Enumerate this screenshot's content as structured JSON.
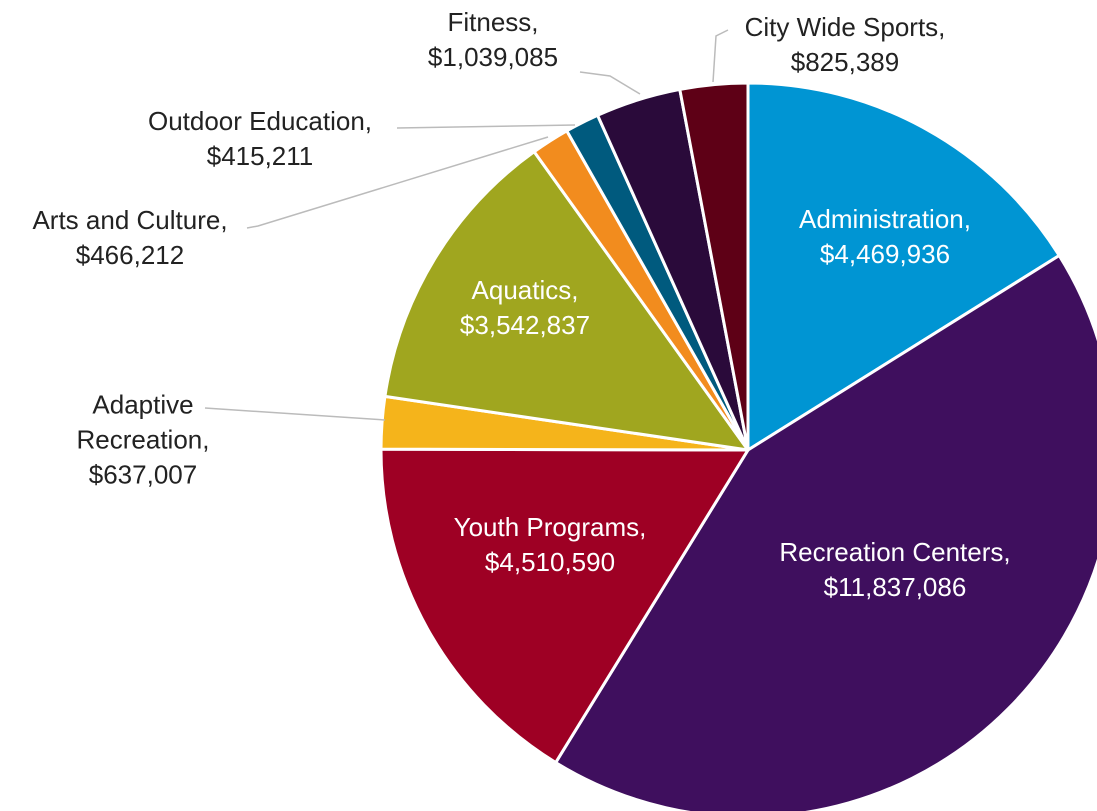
{
  "chart_data": {
    "type": "pie",
    "categories": [
      "Administration,",
      "Recreation Centers,",
      "Youth Programs,",
      "Adaptive Recreation,",
      "Aquatics,",
      "Arts and Culture,",
      "Outdoor Education,",
      "Fitness,",
      "City Wide Sports,"
    ],
    "values": [
      4469936,
      11837086,
      4510590,
      637007,
      3542837,
      466212,
      415211,
      1039085,
      825389
    ],
    "value_labels": [
      "$4,469,936",
      "$11,837,086",
      "$4,510,590",
      "$637,007",
      "$3,542,837",
      "$466,212",
      "$415,211",
      "$1,039,085",
      "$825,389"
    ],
    "colors": [
      "#0095d3",
      "#3f0f5e",
      "#9e0024",
      "#f5b41b",
      "#a0a61f",
      "#f28c1e",
      "#005a7e",
      "#2a0a3a",
      "#5e0016"
    ]
  }
}
